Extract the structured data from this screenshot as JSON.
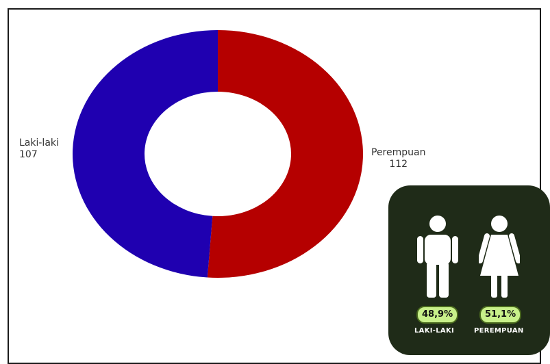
{
  "chart_data": {
    "type": "pie",
    "donut": true,
    "categories": [
      "Laki-laki",
      "Perempuan"
    ],
    "values": [
      107,
      112
    ],
    "colors": [
      "#1f00b0",
      "#b50000"
    ]
  },
  "labels": {
    "laki": {
      "name": "Laki-laki",
      "value": "107"
    },
    "perempuan": {
      "name": "Perempuan",
      "value": "112"
    }
  },
  "infographic": {
    "male": {
      "percent": "48,9%",
      "caption": "LAKI-LAKI",
      "icon": "male-person-icon"
    },
    "female": {
      "percent": "51,1%",
      "caption": "PEREMPUAN",
      "icon": "female-person-icon"
    },
    "background": "#1f2b18",
    "pill_color": "#c8f08a"
  }
}
